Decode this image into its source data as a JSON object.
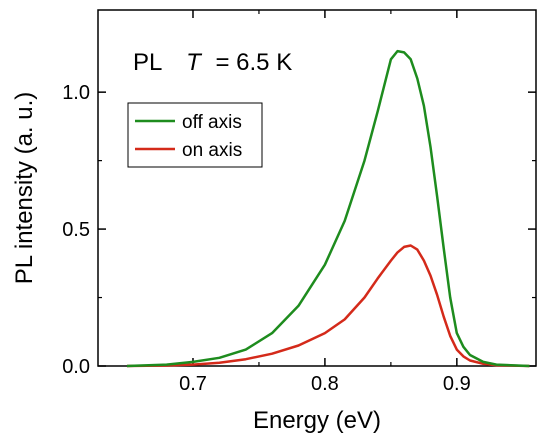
{
  "chart_data": {
    "type": "line",
    "xlabel": "Energy (eV)",
    "ylabel": "PL intensity (a. u.)",
    "xlim": [
      0.628,
      0.96
    ],
    "ylim": [
      0.0,
      1.3
    ],
    "x_ticks": [
      0.7,
      0.8,
      0.9
    ],
    "x_tick_labels": [
      "0.7",
      "0.8",
      "0.9"
    ],
    "y_ticks": [
      0.0,
      0.5,
      1.0
    ],
    "y_tick_labels": [
      "0.0",
      "0.5",
      "1.0"
    ],
    "annotation": {
      "prefix": "PL",
      "variable": "T",
      "value": "= 6.5 K"
    },
    "legend_position": "upper-left",
    "series": [
      {
        "name": "off axis",
        "color": "#1e8c1e",
        "points": [
          [
            0.65,
            0.0
          ],
          [
            0.68,
            0.005
          ],
          [
            0.7,
            0.015
          ],
          [
            0.72,
            0.03
          ],
          [
            0.74,
            0.06
          ],
          [
            0.76,
            0.12
          ],
          [
            0.78,
            0.22
          ],
          [
            0.8,
            0.37
          ],
          [
            0.815,
            0.53
          ],
          [
            0.83,
            0.75
          ],
          [
            0.84,
            0.93
          ],
          [
            0.85,
            1.12
          ],
          [
            0.855,
            1.15
          ],
          [
            0.86,
            1.145
          ],
          [
            0.865,
            1.12
          ],
          [
            0.87,
            1.05
          ],
          [
            0.875,
            0.95
          ],
          [
            0.88,
            0.8
          ],
          [
            0.885,
            0.62
          ],
          [
            0.89,
            0.43
          ],
          [
            0.895,
            0.25
          ],
          [
            0.9,
            0.12
          ],
          [
            0.905,
            0.07
          ],
          [
            0.91,
            0.04
          ],
          [
            0.92,
            0.015
          ],
          [
            0.93,
            0.005
          ],
          [
            0.955,
            0.0
          ]
        ]
      },
      {
        "name": "on axis",
        "color": "#d42a1a",
        "points": [
          [
            0.65,
            0.0
          ],
          [
            0.68,
            0.002
          ],
          [
            0.7,
            0.005
          ],
          [
            0.72,
            0.012
          ],
          [
            0.74,
            0.025
          ],
          [
            0.76,
            0.045
          ],
          [
            0.78,
            0.075
          ],
          [
            0.8,
            0.12
          ],
          [
            0.815,
            0.17
          ],
          [
            0.83,
            0.25
          ],
          [
            0.84,
            0.32
          ],
          [
            0.85,
            0.385
          ],
          [
            0.855,
            0.415
          ],
          [
            0.86,
            0.435
          ],
          [
            0.865,
            0.44
          ],
          [
            0.87,
            0.425
          ],
          [
            0.875,
            0.385
          ],
          [
            0.88,
            0.33
          ],
          [
            0.885,
            0.26
          ],
          [
            0.89,
            0.18
          ],
          [
            0.895,
            0.11
          ],
          [
            0.9,
            0.06
          ],
          [
            0.905,
            0.035
          ],
          [
            0.91,
            0.02
          ],
          [
            0.92,
            0.008
          ],
          [
            0.93,
            0.003
          ],
          [
            0.955,
            0.0
          ]
        ]
      }
    ]
  }
}
